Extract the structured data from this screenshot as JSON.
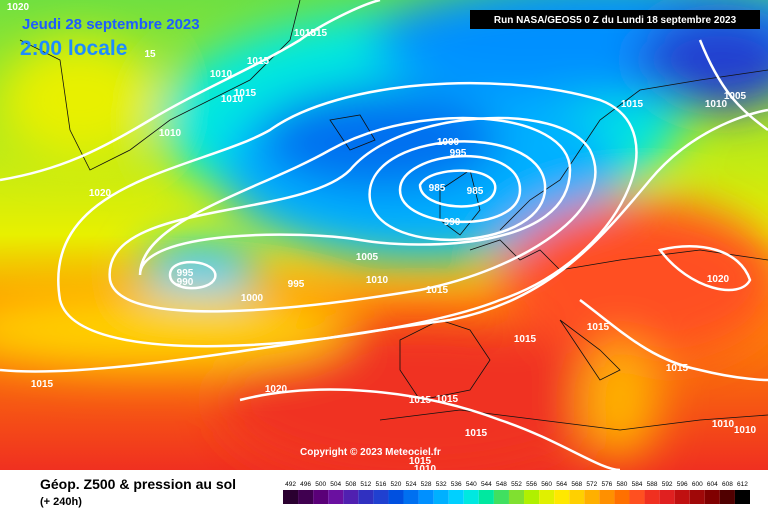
{
  "header": {
    "date": "Jeudi 28 septembre 2023",
    "time": "2:00 locale",
    "run": "Run NASA/GEOS5 0 Z du Lundi 18 septembre 2023"
  },
  "footer": {
    "title": "Géop. Z500 & pression au sol",
    "subtitle": "(+ 240h)",
    "copyright": "Copyright © 2023 Meteociel.fr"
  },
  "isobar_labels": [
    1020,
    15,
    1015,
    1015,
    1015,
    1010,
    1015,
    1010,
    1010,
    1020,
    1000,
    995,
    985,
    985,
    990,
    995,
    990,
    995,
    1000,
    1005,
    1010,
    1015,
    1015,
    1015,
    1015,
    1010,
    1005,
    1020,
    1015,
    1015,
    1020,
    1015,
    1015,
    1015,
    1010,
    1010,
    1015,
    1010
  ],
  "scale": {
    "labels": [
      492,
      496,
      500,
      504,
      508,
      512,
      516,
      520,
      524,
      528,
      532,
      536,
      540,
      544,
      548,
      552,
      556,
      560,
      564,
      568,
      572,
      576,
      580,
      584,
      588,
      592,
      596,
      600,
      604,
      608,
      612
    ],
    "colors": [
      "#2a0030",
      "#400050",
      "#5a0078",
      "#6a10a0",
      "#5020b0",
      "#3030c0",
      "#2040d0",
      "#0050e0",
      "#0070f0",
      "#0090ff",
      "#00b0ff",
      "#00d0ff",
      "#00e8e0",
      "#00e8a0",
      "#40e060",
      "#80e030",
      "#b0f000",
      "#e0f000",
      "#ffe800",
      "#ffd000",
      "#ffb000",
      "#ff9000",
      "#ff7000",
      "#ff5020",
      "#f03020",
      "#e02020",
      "#c01010",
      "#a00808",
      "#800000",
      "#500000",
      "#000000"
    ]
  }
}
